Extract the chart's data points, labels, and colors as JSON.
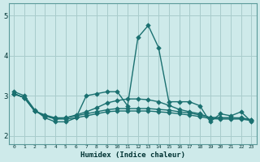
{
  "xlabel": "Humidex (Indice chaleur)",
  "background_color": "#ceeaea",
  "grid_color": "#a8cccc",
  "line_color": "#1a7070",
  "x_values": [
    0,
    1,
    2,
    3,
    4,
    5,
    6,
    7,
    8,
    9,
    10,
    11,
    12,
    13,
    14,
    15,
    16,
    17,
    18,
    19,
    20,
    21,
    22,
    23
  ],
  "series1": [
    3.1,
    3.0,
    2.65,
    2.45,
    2.35,
    2.35,
    2.45,
    3.0,
    3.05,
    3.1,
    3.1,
    2.75,
    4.45,
    4.75,
    4.2,
    2.85,
    2.85,
    2.85,
    2.75,
    2.35,
    2.55,
    2.5,
    2.6,
    2.35
  ],
  "series2": [
    3.05,
    2.95,
    2.62,
    2.5,
    2.42,
    2.42,
    2.45,
    2.5,
    2.55,
    2.6,
    2.62,
    2.62,
    2.62,
    2.62,
    2.6,
    2.58,
    2.55,
    2.52,
    2.48,
    2.43,
    2.42,
    2.42,
    2.42,
    2.38
  ],
  "series3": [
    3.05,
    2.95,
    2.62,
    2.52,
    2.45,
    2.45,
    2.5,
    2.55,
    2.6,
    2.65,
    2.68,
    2.68,
    2.68,
    2.68,
    2.66,
    2.64,
    2.6,
    2.57,
    2.52,
    2.46,
    2.45,
    2.45,
    2.45,
    2.4
  ],
  "series4": [
    3.05,
    2.95,
    2.62,
    2.5,
    2.43,
    2.45,
    2.52,
    2.6,
    2.7,
    2.82,
    2.88,
    2.92,
    2.92,
    2.9,
    2.85,
    2.76,
    2.66,
    2.6,
    2.55,
    2.45,
    2.45,
    2.45,
    2.44,
    2.4
  ],
  "ylim": [
    1.8,
    5.3
  ],
  "yticks": [
    2,
    3,
    4,
    5
  ],
  "xtick_labels": [
    "0",
    "1",
    "2",
    "3",
    "4",
    "5",
    "6",
    "7",
    "8",
    "9",
    "10",
    "11",
    "12",
    "13",
    "14",
    "15",
    "16",
    "17",
    "18",
    "19",
    "20",
    "21",
    "22",
    "23"
  ],
  "xlim": [
    -0.5,
    23.5
  ]
}
